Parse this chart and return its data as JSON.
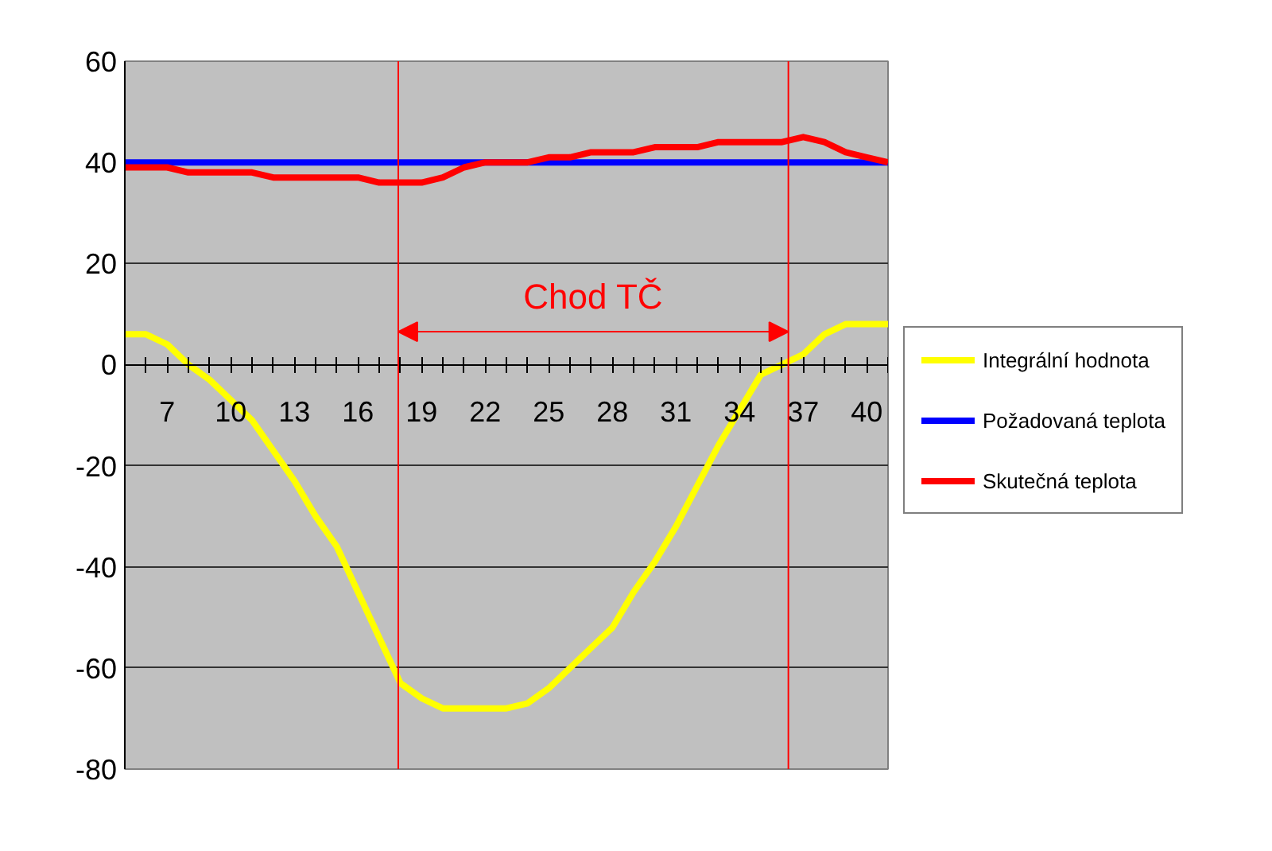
{
  "chart_data": {
    "type": "line",
    "x": [
      5,
      6,
      7,
      8,
      9,
      10,
      11,
      12,
      13,
      14,
      15,
      16,
      17,
      18,
      19,
      20,
      21,
      22,
      23,
      24,
      25,
      26,
      27,
      28,
      29,
      30,
      31,
      32,
      33,
      34,
      35,
      36,
      37,
      38,
      39,
      40,
      41
    ],
    "series": [
      {
        "name": "Integrální hodnota",
        "color": "#ffff00",
        "values": [
          6,
          6,
          4,
          0,
          -3,
          -7,
          -11,
          -17,
          -23,
          -30,
          -36,
          -45,
          -54,
          -63,
          -66,
          -68,
          -68,
          -68,
          -68,
          -67,
          -64,
          -60,
          -56,
          -52,
          -45,
          -39,
          -32,
          -24,
          -16,
          -9,
          -2,
          0,
          2,
          6,
          8,
          8,
          8
        ]
      },
      {
        "name": "Požadovaná teplota",
        "color": "#0000ff",
        "values": [
          40,
          40,
          40,
          40,
          40,
          40,
          40,
          40,
          40,
          40,
          40,
          40,
          40,
          40,
          40,
          40,
          40,
          40,
          40,
          40,
          40,
          40,
          40,
          40,
          40,
          40,
          40,
          40,
          40,
          40,
          40,
          40,
          40,
          40,
          40,
          40,
          40
        ]
      },
      {
        "name": "Skutečná teplota",
        "color": "#ff0000",
        "values": [
          39,
          39,
          39,
          38,
          38,
          38,
          38,
          37,
          37,
          37,
          37,
          37,
          36,
          36,
          36,
          37,
          39,
          40,
          40,
          40,
          41,
          41,
          42,
          42,
          42,
          43,
          43,
          43,
          44,
          44,
          44,
          44,
          45,
          44,
          42,
          41,
          40
        ]
      }
    ],
    "xlim": [
      5,
      41
    ],
    "xticks": [
      {
        "value": 5,
        "label": null
      },
      {
        "value": 6,
        "label": null
      },
      7,
      {
        "value": 8,
        "label": null
      },
      {
        "value": 9,
        "label": null
      },
      10,
      {
        "value": 11,
        "label": null
      },
      {
        "value": 12,
        "label": null
      },
      13,
      {
        "value": 14,
        "label": null
      },
      {
        "value": 15,
        "label": null
      },
      16,
      {
        "value": 17,
        "label": null
      },
      {
        "value": 18,
        "label": null
      },
      19,
      {
        "value": 20,
        "label": null
      },
      {
        "value": 21,
        "label": null
      },
      22,
      {
        "value": 23,
        "label": null
      },
      {
        "value": 24,
        "label": null
      },
      25,
      {
        "value": 26,
        "label": null
      },
      {
        "value": 27,
        "label": null
      },
      28,
      {
        "value": 29,
        "label": null
      },
      {
        "value": 30,
        "label": null
      },
      31,
      {
        "value": 32,
        "label": null
      },
      {
        "value": 33,
        "label": null
      },
      34,
      {
        "value": 35,
        "label": null
      },
      {
        "value": 36,
        "label": null
      },
      37,
      {
        "value": 38,
        "label": null
      },
      {
        "value": 39,
        "label": null
      },
      40,
      {
        "value": 41,
        "label": null
      }
    ],
    "ylim": [
      -80,
      60
    ],
    "yticks": [
      -80,
      -60,
      -40,
      -20,
      0,
      20,
      40,
      60
    ],
    "ref_lines": [
      {
        "axis": "x",
        "value": 17.9,
        "color": "#ff0000"
      },
      {
        "axis": "x",
        "value": 36.3,
        "color": "#ff0000"
      }
    ],
    "annotations": [
      "Chod TČ"
    ],
    "grid": "y",
    "legend": "right",
    "marker": "none",
    "line_style": "solid"
  }
}
